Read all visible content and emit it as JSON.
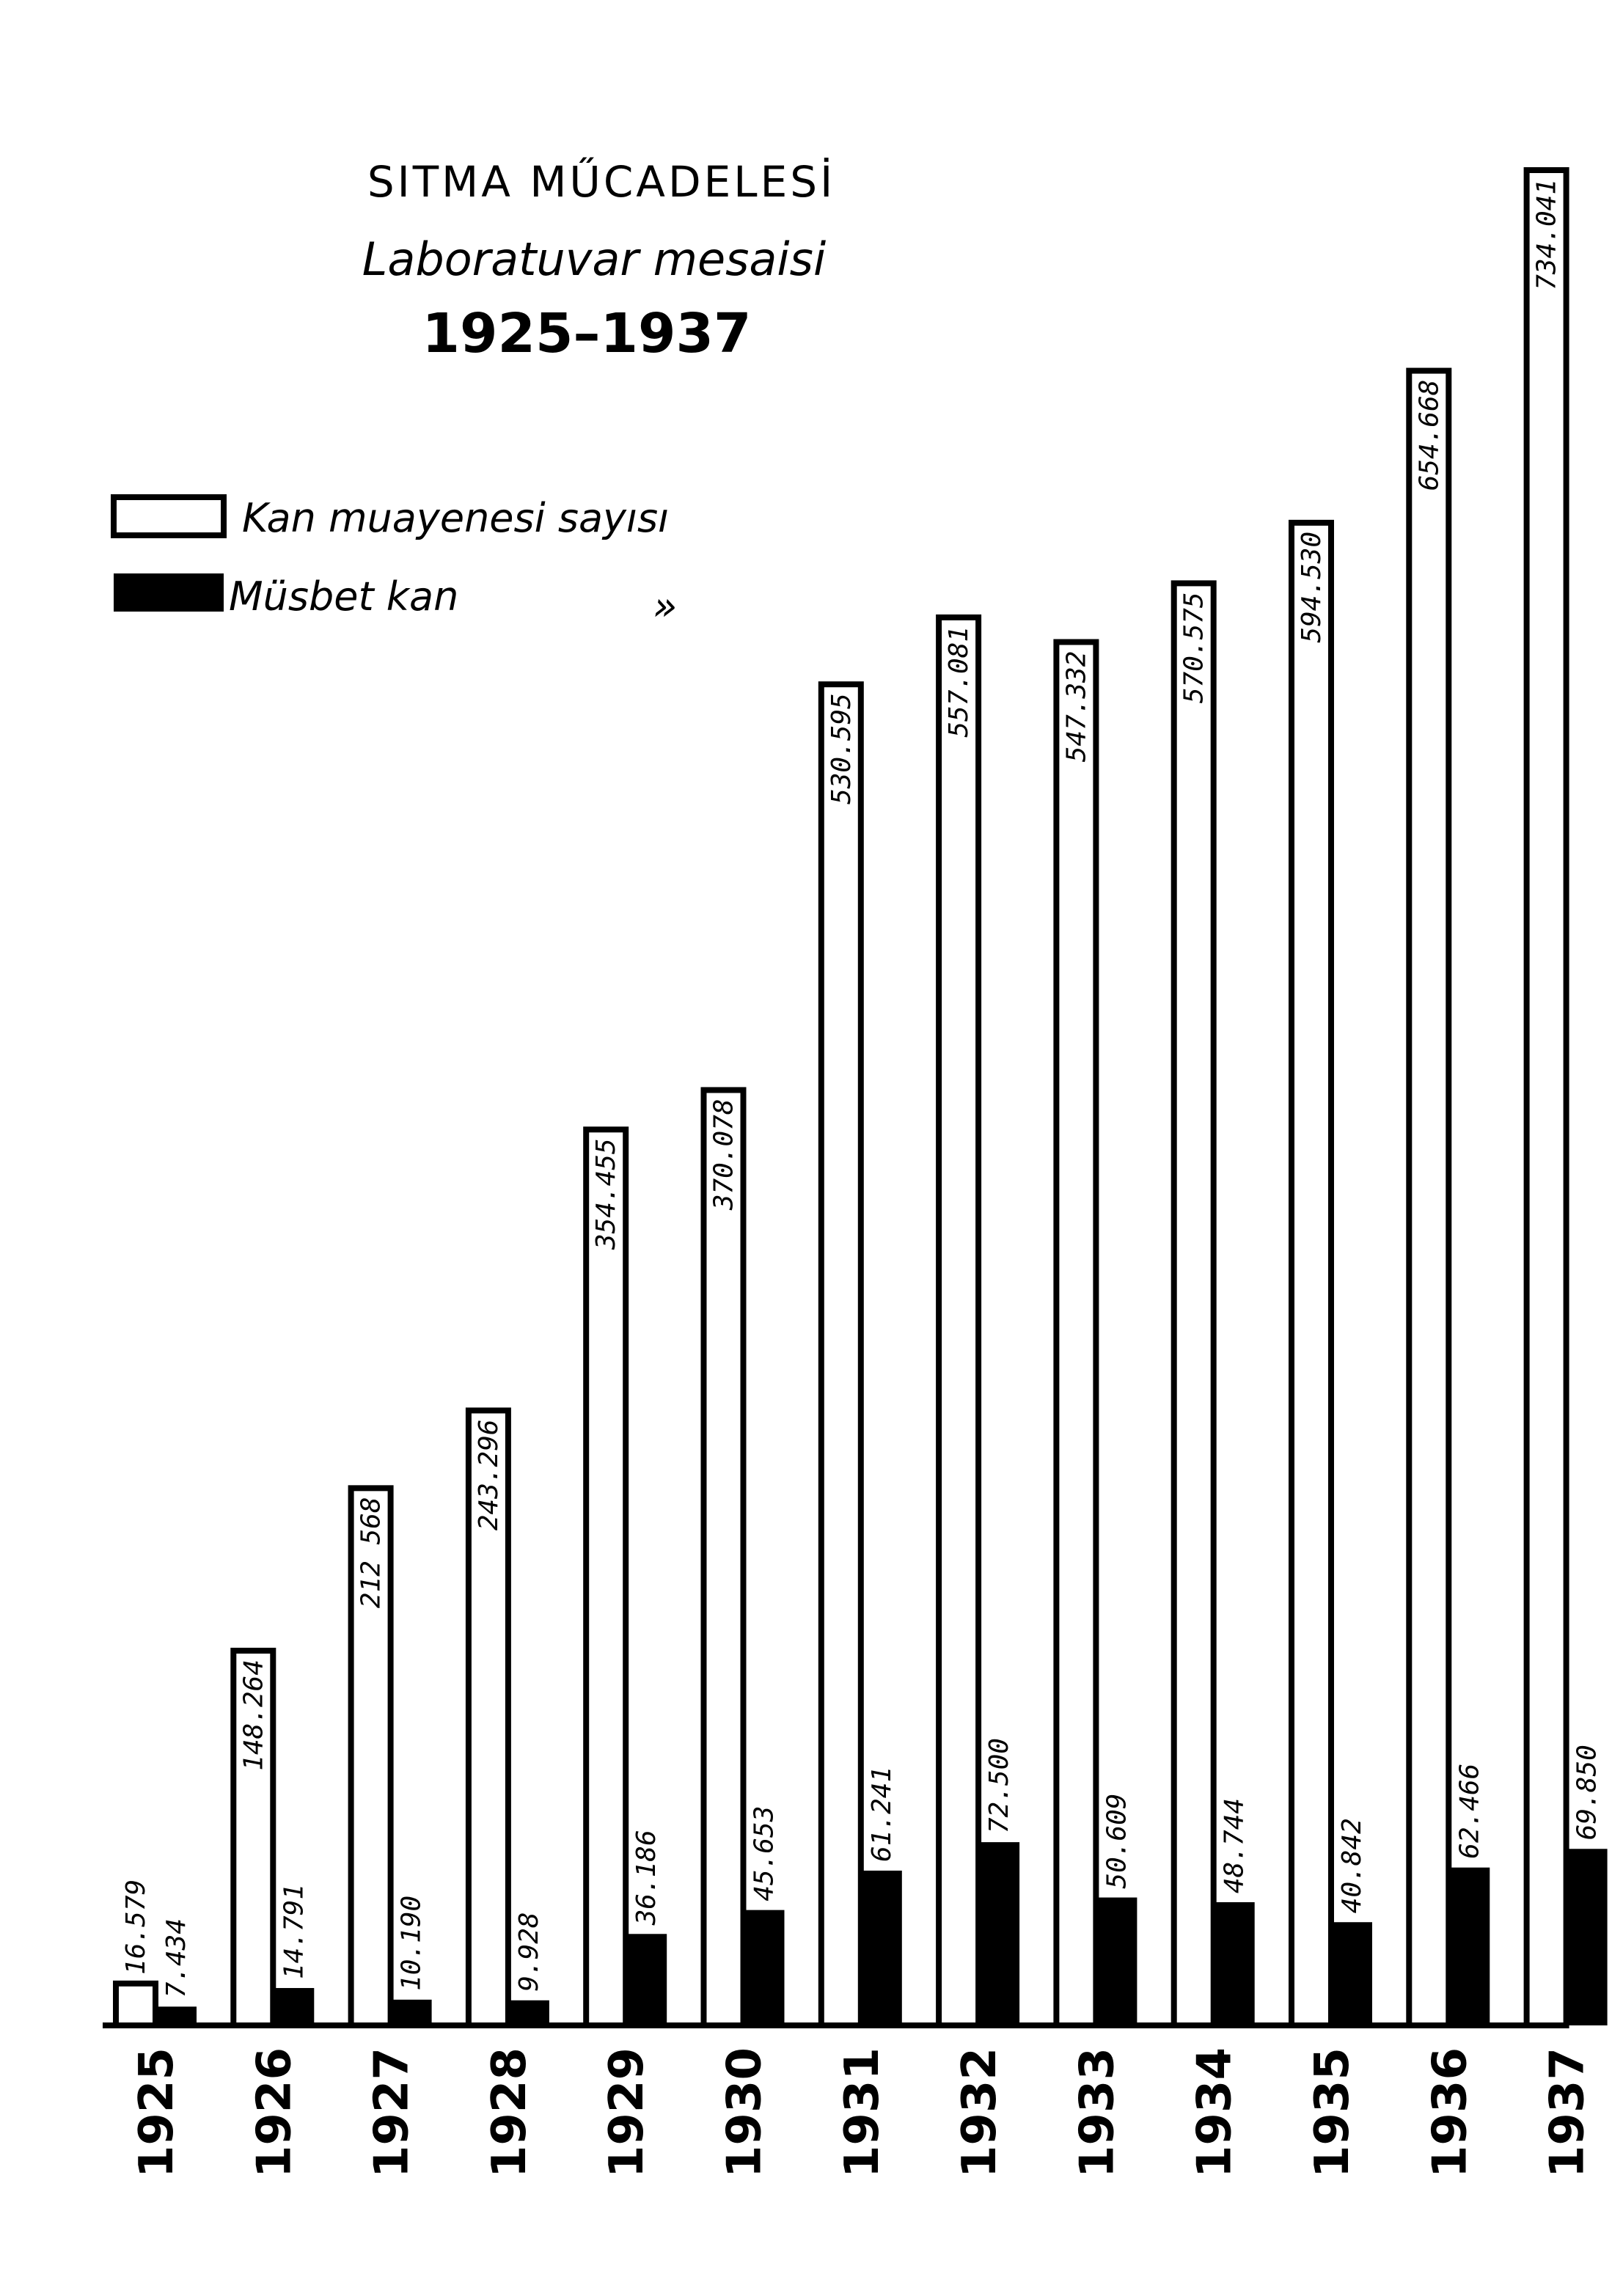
{
  "chart_data": {
    "type": "bar",
    "title": "SITMA MŰCADELESİ",
    "subtitle": "Laboratuvar mesaisi",
    "period": "1925–1937",
    "categories": [
      "1925",
      "1926",
      "1927",
      "1928",
      "1929",
      "1930",
      "1931",
      "1932",
      "1933",
      "1934",
      "1935",
      "1936",
      "1937"
    ],
    "series": [
      {
        "name": "Kan muayenesi sayısı",
        "color": "#ffffff",
        "values": [
          16579,
          148264,
          212568,
          243296,
          354455,
          370078,
          530595,
          557081,
          547332,
          570575,
          594530,
          654668,
          734041
        ],
        "labels": [
          "16.579",
          "148.264",
          "212 568",
          "243.296",
          "354.455",
          "370.078",
          "530.595",
          "557.081",
          "547.332",
          "570.575",
          "594.530",
          "654.668",
          "734.041"
        ]
      },
      {
        "name": "Müsbet kan",
        "color": "#000000",
        "values": [
          7434,
          14791,
          10190,
          9928,
          36186,
          45653,
          61241,
          72500,
          50609,
          48744,
          40842,
          62466,
          69850
        ],
        "labels": [
          "7.434",
          "14.791",
          "10.190",
          "9.928",
          "36.186",
          "45.653",
          "61.241",
          "72.500",
          "50.609",
          "48.744",
          "40.842",
          "62.466",
          "69.850"
        ]
      }
    ],
    "legend": {
      "placement": "top-left",
      "items": [
        "Kan muayenesi sayısı",
        "Müsbet kan"
      ],
      "ditto_mark": "»"
    },
    "ylim": [
      0,
      734041
    ],
    "grid": false,
    "xlabel": "",
    "ylabel": ""
  }
}
